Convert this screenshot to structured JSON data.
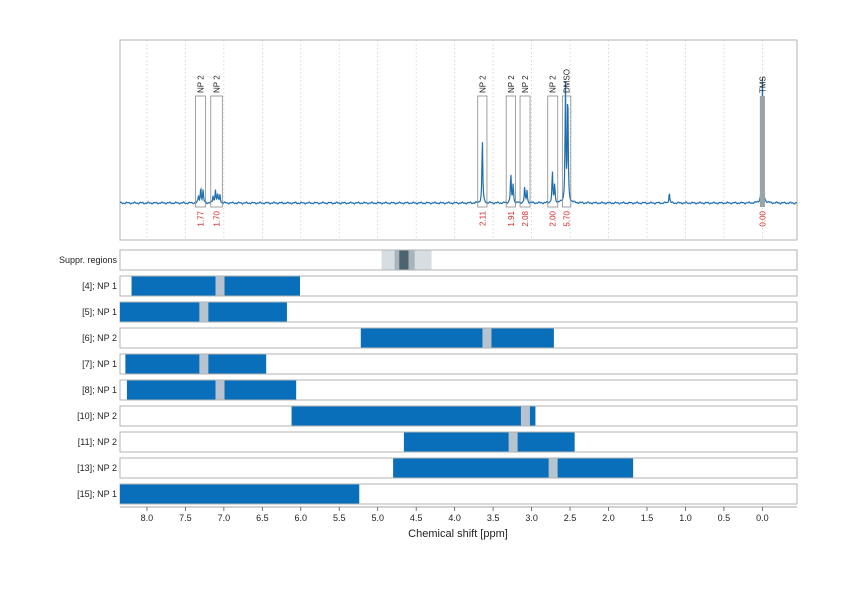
{
  "chart_data": {
    "type": "nmr-spectrum-with-range-bars",
    "xlabel": "Chemical shift [ppm]",
    "xlim": [
      8.35,
      -0.45
    ],
    "x_ticks": [
      8.0,
      7.5,
      7.0,
      6.5,
      6.0,
      5.5,
      5.0,
      4.5,
      4.0,
      3.5,
      3.0,
      2.5,
      2.0,
      1.5,
      1.0,
      0.5,
      0.0
    ],
    "x_tick_labels": [
      "8.0",
      "7.5",
      "7.0",
      "6.5",
      "6.0",
      "5.5",
      "5.0",
      "4.5",
      "4.0",
      "3.5",
      "3.0",
      "2.5",
      "2.0",
      "1.5",
      "1.0",
      "0.5",
      "0.0"
    ],
    "grid": "vertical dotted",
    "colors": {
      "spectrum": "#1f6fb0",
      "bar": "#0a6fba",
      "marker": "#b7c4cf",
      "suppr_light": "#d6dde3",
      "suppr_mid": "#a8b3bc",
      "suppr_dark": "#4d6370",
      "integral_text": "#d62728",
      "tms_line": "#9aa3a8",
      "frame": "#b3b3b3"
    },
    "spectrum": {
      "baseline": 0,
      "peaks": [
        {
          "x": 7.3,
          "height": 0.12
        },
        {
          "x": 7.27,
          "height": 0.09
        },
        {
          "x": 7.33,
          "height": 0.05
        },
        {
          "x": 7.11,
          "height": 0.1
        },
        {
          "x": 7.08,
          "height": 0.07
        },
        {
          "x": 7.05,
          "height": 0.06
        },
        {
          "x": 7.14,
          "height": 0.05
        },
        {
          "x": 3.64,
          "height": 0.48
        },
        {
          "x": 3.27,
          "height": 0.22
        },
        {
          "x": 3.24,
          "height": 0.14
        },
        {
          "x": 3.09,
          "height": 0.12
        },
        {
          "x": 3.06,
          "height": 0.09
        },
        {
          "x": 2.73,
          "height": 0.23
        },
        {
          "x": 2.7,
          "height": 0.14
        },
        {
          "x": 2.56,
          "height": 0.85
        },
        {
          "x": 2.53,
          "height": 0.85
        },
        {
          "x": 1.21,
          "height": 0.08
        },
        {
          "x": 0.0,
          "height": 0.95
        }
      ]
    },
    "peak_annotations": [
      {
        "label": "NP 2",
        "x_from": 7.37,
        "x_to": 7.24,
        "integral": "1.77"
      },
      {
        "label": "NP 2",
        "x_from": 7.17,
        "x_to": 7.02,
        "integral": "1.70"
      },
      {
        "label": "NP 2",
        "x_from": 3.7,
        "x_to": 3.58,
        "integral": "2.11"
      },
      {
        "label": "NP 2",
        "x_from": 3.33,
        "x_to": 3.21,
        "integral": "1.91"
      },
      {
        "label": "NP 2",
        "x_from": 3.15,
        "x_to": 3.02,
        "integral": "2.08"
      },
      {
        "label": "NP 2",
        "x_from": 2.79,
        "x_to": 2.66,
        "integral": "2.00"
      },
      {
        "label": "DMSO",
        "x_from": 2.6,
        "x_to": 2.49,
        "integral": "5.70"
      },
      {
        "label": "TMS",
        "x_from": 0.02,
        "x_to": -0.02,
        "integral": "0.00"
      }
    ],
    "suppression_row": {
      "label": "Suppr. regions",
      "regions": [
        {
          "from": 4.95,
          "to": 4.3,
          "level": "light"
        },
        {
          "from": 4.78,
          "to": 4.52,
          "level": "mid"
        },
        {
          "from": 4.72,
          "to": 4.6,
          "level": "dark"
        }
      ]
    },
    "rows": [
      {
        "label": "[4]; NP 1",
        "from": 8.2,
        "to": 6.01,
        "marker": 7.05
      },
      {
        "label": "[5]; NP 1",
        "from": 8.35,
        "to": 6.18,
        "marker": 7.26
      },
      {
        "label": "[6]; NP 2",
        "from": 5.22,
        "to": 2.71,
        "marker": 3.58
      },
      {
        "label": "[7]; NP 1",
        "from": 8.28,
        "to": 6.45,
        "marker": 7.26
      },
      {
        "label": "[8]; NP 1",
        "from": 8.26,
        "to": 6.06,
        "marker": 7.05
      },
      {
        "label": "[10]; NP 2",
        "from": 6.12,
        "to": 2.95,
        "marker": 3.08
      },
      {
        "label": "[11]; NP 2",
        "from": 4.66,
        "to": 2.44,
        "marker": 3.24
      },
      {
        "label": "[13]; NP 2",
        "from": 4.8,
        "to": 1.68,
        "marker": 2.72
      },
      {
        "label": "[15]; NP 1",
        "from": 8.35,
        "to": 5.24,
        "marker": null
      }
    ]
  }
}
